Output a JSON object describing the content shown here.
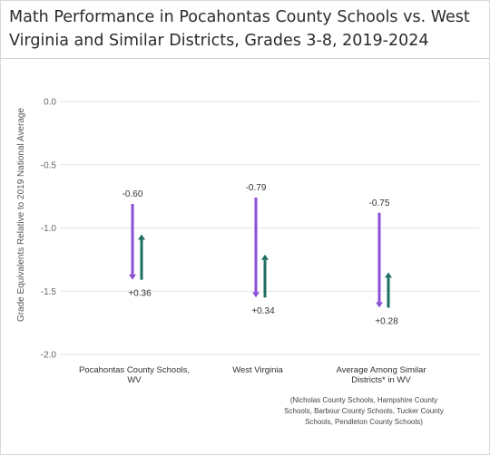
{
  "title": "Math Performance in Pocahontas County Schools vs. West Virginia and Similar Districts, Grades 3-8, 2019-2024",
  "footnote": "(Nicholas County Schools, Hampshire County Schools, Barbour County Schools, Tucker County Schools, Pendleton County Schools)",
  "colors": {
    "decline": "#8b4fd6",
    "recovery": "#1f6e64",
    "grid": "#e3e3e3"
  },
  "chart_data": {
    "type": "bar",
    "title": "Math Performance in Pocahontas County Schools vs. West Virginia and Similar Districts, Grades 3-8, 2019-2024",
    "ylabel": "Grade Equivalents Relative to 2019 National Average",
    "ylim": [
      -2.0,
      0.0
    ],
    "yticks": [
      {
        "value": 0.0,
        "label": "0.0"
      },
      {
        "value": -0.5,
        "label": "-0.5"
      },
      {
        "value": -1.0,
        "label": "-1.0"
      },
      {
        "value": -1.5,
        "label": "-1.5"
      },
      {
        "value": -2.0,
        "label": "-2.0"
      }
    ],
    "grid": true,
    "categories": [
      {
        "lines": [
          "Pocahontas County Schools,",
          "WV"
        ],
        "decline": {
          "from": -0.81,
          "to": -1.41,
          "label": "-0.60"
        },
        "recovery": {
          "from": -1.41,
          "to": -1.05,
          "label": "+0.36"
        }
      },
      {
        "lines": [
          "West Virginia"
        ],
        "decline": {
          "from": -0.76,
          "to": -1.55,
          "label": "-0.79"
        },
        "recovery": {
          "from": -1.55,
          "to": -1.21,
          "label": "+0.34"
        }
      },
      {
        "lines": [
          "Average Among Similar",
          "Districts* in WV"
        ],
        "decline": {
          "from": -0.88,
          "to": -1.63,
          "label": "-0.75"
        },
        "recovery": {
          "from": -1.63,
          "to": -1.35,
          "label": "+0.28"
        }
      }
    ]
  }
}
